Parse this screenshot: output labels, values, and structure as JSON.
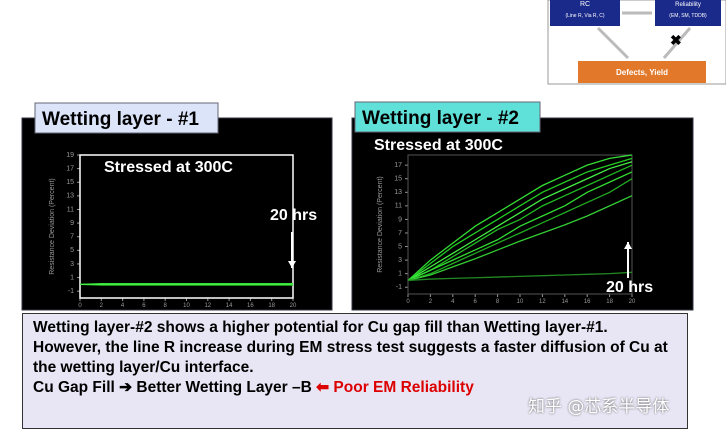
{
  "diagram": {
    "nodes": [
      {
        "label": "RC",
        "sub": "(Line R, Via R, C)"
      },
      {
        "label": "Reliability",
        "sub": "(EM, SM, TDDB)"
      },
      {
        "label": "Defects, Yield"
      }
    ]
  },
  "chart_data": [
    {
      "type": "line",
      "title": "Wetting layer - #1",
      "y_label": "Resistance Deviation (Percent)",
      "annotations": [
        "Stressed at 300C",
        "20 hrs"
      ],
      "x": [
        0,
        2,
        4,
        6,
        8,
        10,
        12,
        14,
        16,
        18,
        20
      ],
      "series": [
        {
          "color": "#33dd33",
          "values": [
            0,
            0.1,
            0.1,
            0.1,
            0.1,
            0.1,
            0.1,
            0.1,
            0.1,
            0.1,
            0.1
          ]
        },
        {
          "color": "#22bb22",
          "values": [
            0,
            -0.1,
            -0.1,
            -0.1,
            -0.1,
            -0.1,
            -0.1,
            -0.1,
            -0.1,
            -0.1,
            -0.1
          ]
        },
        {
          "color": "#44ee44",
          "values": [
            0,
            0,
            0,
            0,
            0,
            0,
            0,
            0,
            0,
            0,
            0
          ]
        }
      ],
      "xlim": [
        0,
        20
      ],
      "xticks": [
        0,
        2,
        4,
        6,
        8,
        10,
        12,
        14,
        16,
        18,
        20
      ],
      "ylim": [
        -2,
        19
      ],
      "yticks": [
        -1,
        1,
        3,
        5,
        7,
        9,
        11,
        13,
        15,
        17,
        19
      ]
    },
    {
      "type": "line",
      "title": "Wetting layer - #2",
      "y_label": "Resistance Deviation (Percent)",
      "annotations": [
        "Stressed at 300C",
        "20 hrs"
      ],
      "x": [
        0,
        2,
        4,
        6,
        8,
        10,
        12,
        14,
        16,
        18,
        20
      ],
      "series": [
        {
          "color": "#33dd33",
          "values": [
            0,
            3,
            5.5,
            8,
            10,
            12,
            14,
            15.5,
            17,
            18,
            18.5
          ]
        },
        {
          "color": "#22cc22",
          "values": [
            0,
            2.5,
            5,
            7,
            9,
            11,
            13,
            14.5,
            16,
            17,
            18
          ]
        },
        {
          "color": "#44ee44",
          "values": [
            0,
            2,
            4,
            6,
            8,
            10,
            12,
            13.5,
            15,
            16.5,
            17.5
          ]
        },
        {
          "color": "#22bb22",
          "values": [
            0,
            1.5,
            3.5,
            5.5,
            7.5,
            9,
            11,
            12.5,
            14,
            15.5,
            17
          ]
        },
        {
          "color": "#33dd33",
          "values": [
            0,
            1.5,
            3,
            4.5,
            6,
            8,
            9.5,
            11,
            13,
            14.5,
            16
          ]
        },
        {
          "color": "#22aa22",
          "values": [
            0,
            1,
            2.5,
            4,
            5.5,
            7,
            8.5,
            10,
            11.5,
            13,
            15
          ]
        },
        {
          "color": "#33cc33",
          "values": [
            0,
            0.8,
            2,
            3.2,
            4.5,
            5.8,
            7,
            8.2,
            9.5,
            11,
            12.5
          ]
        },
        {
          "color": "#228822",
          "values": [
            0,
            0.2,
            0.3,
            0.4,
            0.5,
            0.6,
            0.7,
            0.8,
            0.9,
            1,
            1.2
          ]
        }
      ],
      "xlim": [
        0,
        20
      ],
      "xticks": [
        0,
        2,
        4,
        6,
        8,
        10,
        12,
        14,
        16,
        18,
        20
      ],
      "ylim": [
        -2,
        18.5
      ],
      "yticks": [
        -1,
        1,
        3,
        5,
        7,
        9,
        11,
        13,
        15,
        17
      ]
    }
  ],
  "caption": {
    "lines": [
      "Wetting layer-#2 shows a higher potential for Cu gap fill than Wetting layer-#1.",
      "However, the line R increase during EM stress test suggests a faster diffusion of Cu at the wetting layer/Cu interface."
    ],
    "conclusion": "Cu Gap Fill ➔ Better Wetting Layer –B",
    "warning": "⬅ Poor EM Reliability"
  },
  "watermark": "知乎 @芯系半导体"
}
